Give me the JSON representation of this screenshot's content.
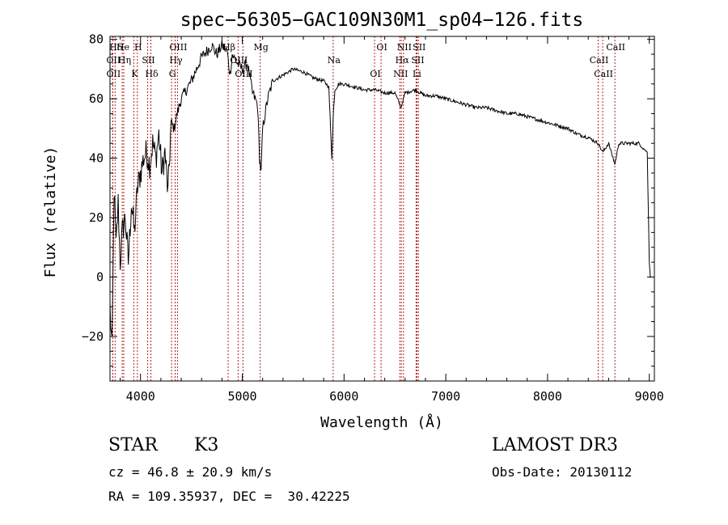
{
  "chart_data": {
    "type": "line",
    "title": "spec−56305−GAC109N30M1_sp04−126.fits",
    "xlabel": "Wavelength (Å)",
    "ylabel": "Flux (relative)",
    "xlim": [
      3700,
      9050
    ],
    "ylim": [
      -35,
      81
    ],
    "xticks": [
      4000,
      5000,
      6000,
      7000,
      8000,
      9000
    ],
    "xtick_labels": [
      "4000",
      "5000",
      "6000",
      "7000",
      "8000",
      "9000"
    ],
    "yticks": [
      -20,
      0,
      20,
      40,
      60,
      80
    ],
    "ytick_labels": [
      "−20",
      "0",
      "20",
      "40",
      "60",
      "80"
    ],
    "grid": false,
    "series": [
      {
        "name": "flux",
        "x": [
          3700,
          3720,
          3740,
          3760,
          3780,
          3800,
          3820,
          3850,
          3880,
          3910,
          3940,
          3970,
          4000,
          4030,
          4060,
          4090,
          4120,
          4150,
          4180,
          4210,
          4240,
          4270,
          4300,
          4330,
          4360,
          4400,
          4450,
          4500,
          4550,
          4600,
          4650,
          4700,
          4750,
          4800,
          4850,
          4880,
          4900,
          4950,
          5000,
          5050,
          5100,
          5150,
          5170,
          5185,
          5200,
          5250,
          5300,
          5400,
          5500,
          5600,
          5700,
          5800,
          5850,
          5880,
          5895,
          5910,
          5950,
          6000,
          6100,
          6200,
          6300,
          6400,
          6500,
          6560,
          6600,
          6700,
          6800,
          6900,
          7000,
          7100,
          7200,
          7300,
          7400,
          7500,
          7600,
          7700,
          7800,
          7900,
          8000,
          8100,
          8200,
          8300,
          8400,
          8498,
          8542,
          8600,
          8662,
          8700,
          8800,
          8900,
          8950,
          8980,
          9000,
          9010
        ],
        "y": [
          -10,
          -25,
          30,
          10,
          25,
          5,
          15,
          20,
          5,
          25,
          15,
          30,
          35,
          40,
          42,
          38,
          45,
          40,
          48,
          35,
          42,
          28,
          52,
          50,
          55,
          60,
          63,
          66,
          70,
          74,
          76,
          78,
          75,
          78,
          76,
          68,
          75,
          72,
          70,
          72,
          62,
          58,
          40,
          35,
          50,
          60,
          66,
          68,
          70,
          69,
          67,
          66,
          64,
          40,
          55,
          63,
          65,
          65,
          64,
          63,
          63,
          62,
          62,
          57,
          62,
          63,
          61,
          61,
          60,
          59,
          58,
          57,
          57,
          56,
          55,
          55,
          54,
          53,
          52,
          51,
          50,
          48,
          47,
          45,
          42,
          45,
          38,
          45,
          45,
          45,
          43,
          42,
          5,
          0
        ]
      }
    ],
    "line_ids": [
      {
        "label": "Hδ",
        "wavelength": 3750
      },
      {
        "label": "OII",
        "wavelength": 3727
      },
      {
        "label": "OII",
        "wavelength": 3727
      },
      {
        "label": "He",
        "wavelength": 3820
      },
      {
        "label": "Hη",
        "wavelength": 3835
      },
      {
        "label": "K",
        "wavelength": 3934
      },
      {
        "label": "H",
        "wavelength": 3969
      },
      {
        "label": "SII",
        "wavelength": 4070
      },
      {
        "label": "Hδ",
        "wavelength": 4102
      },
      {
        "label": "OIII",
        "wavelength": 4363
      },
      {
        "label": "Hγ",
        "wavelength": 4340
      },
      {
        "label": "G",
        "wavelength": 4305
      },
      {
        "label": "Hβ",
        "wavelength": 4861
      },
      {
        "label": "OIII",
        "wavelength": 4959
      },
      {
        "label": "OIII",
        "wavelength": 5007
      },
      {
        "label": "Mg",
        "wavelength": 5176
      },
      {
        "label": "Na",
        "wavelength": 5893
      },
      {
        "label": "OI",
        "wavelength": 6300
      },
      {
        "label": "OI",
        "wavelength": 6364
      },
      {
        "label": "Hα",
        "wavelength": 6563
      },
      {
        "label": "NII",
        "wavelength": 6548
      },
      {
        "label": "NII",
        "wavelength": 6584
      },
      {
        "label": "SII",
        "wavelength": 6717
      },
      {
        "label": "Li",
        "wavelength": 6708
      },
      {
        "label": "SII",
        "wavelength": 6731
      },
      {
        "label": "CaII",
        "wavelength": 8498
      },
      {
        "label": "CaII",
        "wavelength": 8542
      },
      {
        "label": "CaII",
        "wavelength": 8662
      }
    ]
  },
  "info": {
    "class_label": "STAR",
    "subclass": "K3",
    "survey": "LAMOST DR3",
    "redshift_line": "cz = 46.8 ± 20.9 km/s",
    "obs_date": "Obs-Date: 20130112",
    "coords": "RA = 109.35937, DEC =  30.42225"
  },
  "colors": {
    "line_marker": "#b22222",
    "spectrum": "#000000",
    "axes": "#000000"
  }
}
